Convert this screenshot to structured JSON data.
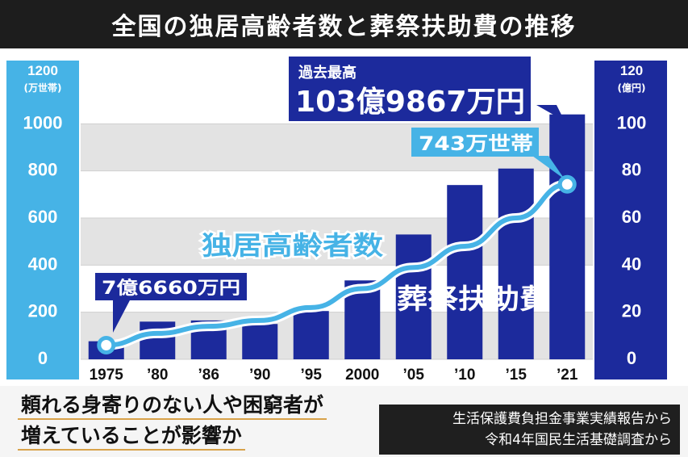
{
  "title": "全国の独居高齢者数と葬祭扶助費の推移",
  "left_axis": {
    "unit": "(万世帯)",
    "ticks": [
      "0",
      "200",
      "400",
      "600",
      "800",
      "1000",
      "1200"
    ]
  },
  "right_axis": {
    "unit": "(億円)",
    "ticks": [
      "0",
      "20",
      "40",
      "60",
      "80",
      "100",
      "120"
    ]
  },
  "annotations": {
    "peak_label": "過去最高",
    "peak_value": "103億9867万円",
    "start_value": "7億6660万円",
    "end_households": "743万世帯",
    "line_series_label": "独居高齢者数",
    "bar_series_label": "葬祭扶助費"
  },
  "caption": {
    "line1": "頼れる身寄りのない人や困窮者が",
    "line2": "増えていることが影響か"
  },
  "source": {
    "line1": "生活保護費負担金事業実績報告から",
    "line2": "令和4年国民生活基礎調査から"
  },
  "colors": {
    "bar": "#1c2a9c",
    "line": "#46b3e6",
    "left_axis": "#46b3e6",
    "right_axis": "#1c2a9c"
  },
  "chart_data": {
    "type": "bar",
    "categories": [
      "1975",
      "’80",
      "’86",
      "’90",
      "’95",
      "2000",
      "’05",
      "’10",
      "’15",
      "’21"
    ],
    "series": [
      {
        "name": "葬祭扶助費",
        "unit": "億円",
        "axis": "right",
        "type": "bar",
        "values": [
          7.67,
          16,
          16.5,
          15,
          20.5,
          33.5,
          53,
          74,
          81,
          103.99
        ]
      },
      {
        "name": "独居高齢者数",
        "unit": "万世帯",
        "axis": "left",
        "type": "line",
        "values": [
          60,
          110,
          140,
          165,
          220,
          300,
          390,
          480,
          600,
          743
        ]
      }
    ],
    "ylim_left": [
      0,
      1200
    ],
    "ylim_right": [
      0,
      120
    ],
    "grid": true
  }
}
